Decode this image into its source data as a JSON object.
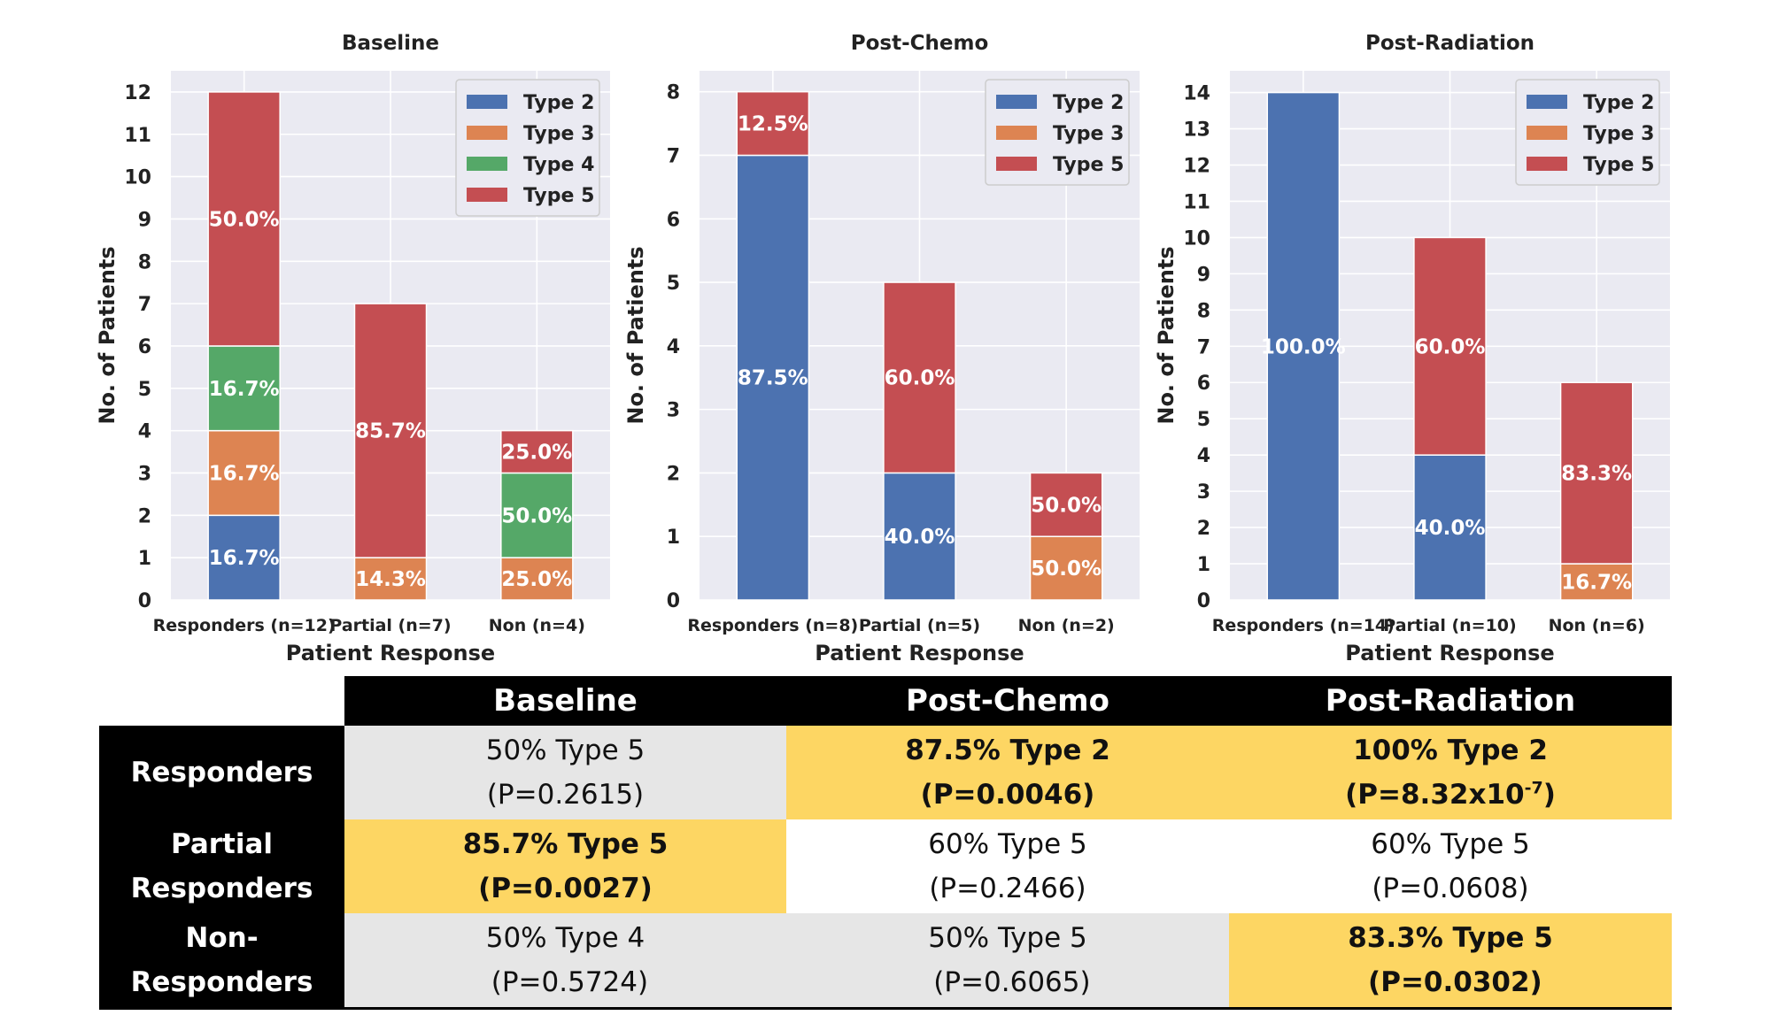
{
  "chart_data": [
    {
      "type": "bar",
      "stacked": true,
      "title": "Baseline",
      "xlabel": "Patient Response",
      "ylabel": "No. of Patients",
      "categories": [
        "Responders (n=12)",
        "Partial (n=7)",
        "Non (n=4)"
      ],
      "yticks": [
        0,
        1,
        2,
        3,
        4,
        5,
        6,
        7,
        8,
        9,
        10,
        11,
        12
      ],
      "ylim": [
        0,
        12.5
      ],
      "grid": true,
      "legend": "top-right",
      "series": [
        {
          "name": "Type 2",
          "color": "#4c72b0",
          "values": [
            2,
            0,
            0
          ],
          "labels": [
            "16.7%",
            "",
            ""
          ]
        },
        {
          "name": "Type 3",
          "color": "#dd8452",
          "values": [
            2,
            1,
            1
          ],
          "labels": [
            "16.7%",
            "14.3%",
            "25.0%"
          ]
        },
        {
          "name": "Type 4",
          "color": "#55a868",
          "values": [
            2,
            0,
            2
          ],
          "labels": [
            "16.7%",
            "",
            "50.0%"
          ]
        },
        {
          "name": "Type 5",
          "color": "#c44e52",
          "values": [
            6,
            6,
            1
          ],
          "labels": [
            "50.0%",
            "85.7%",
            "25.0%"
          ]
        }
      ]
    },
    {
      "type": "bar",
      "stacked": true,
      "title": "Post-Chemo",
      "xlabel": "Patient Response",
      "ylabel": "No. of Patients",
      "categories": [
        "Responders (n=8)",
        "Partial (n=5)",
        "Non (n=2)"
      ],
      "yticks": [
        0,
        1,
        2,
        3,
        4,
        5,
        6,
        7,
        8
      ],
      "ylim": [
        0,
        8.33
      ],
      "grid": true,
      "legend": "top-right",
      "series": [
        {
          "name": "Type 2",
          "color": "#4c72b0",
          "values": [
            7,
            2,
            0
          ],
          "labels": [
            "87.5%",
            "40.0%",
            ""
          ]
        },
        {
          "name": "Type 3",
          "color": "#dd8452",
          "values": [
            0,
            0,
            1
          ],
          "labels": [
            "",
            "",
            "50.0%"
          ]
        },
        {
          "name": "Type 5",
          "color": "#c44e52",
          "values": [
            1,
            3,
            1
          ],
          "labels": [
            "12.5%",
            "60.0%",
            "50.0%"
          ]
        }
      ]
    },
    {
      "type": "bar",
      "stacked": true,
      "title": "Post-Radiation",
      "xlabel": "Patient Response",
      "ylabel": "No. of Patients",
      "categories": [
        "Responders (n=14)",
        "Partial (n=10)",
        "Non (n=6)"
      ],
      "yticks": [
        0,
        1,
        2,
        3,
        4,
        5,
        6,
        7,
        8,
        9,
        10,
        11,
        12,
        13,
        14
      ],
      "ylim": [
        0,
        14.6
      ],
      "grid": true,
      "legend": "top-right",
      "series": [
        {
          "name": "Type 2",
          "color": "#4c72b0",
          "values": [
            14,
            4,
            0
          ],
          "labels": [
            "100.0%",
            "40.0%",
            ""
          ]
        },
        {
          "name": "Type 3",
          "color": "#dd8452",
          "values": [
            0,
            0,
            1
          ],
          "labels": [
            "",
            "",
            "16.7%"
          ]
        },
        {
          "name": "Type 5",
          "color": "#c44e52",
          "values": [
            0,
            6,
            5
          ],
          "labels": [
            "",
            "60.0%",
            "83.3%"
          ]
        }
      ]
    }
  ],
  "table": {
    "columns": [
      "Baseline",
      "Post-Chemo",
      "Post-Radiation"
    ],
    "rows": [
      {
        "label_l1": "Responders",
        "label_l2": "",
        "cells": [
          {
            "l1": "50% Type 5",
            "l2": "(P=0.2615)",
            "highlight": false
          },
          {
            "l1": "87.5% Type 2",
            "l2": "(P=0.0046)",
            "highlight": true
          },
          {
            "l1": "100% Type 2",
            "l2": "(P=8.32x10",
            "sup": "-7",
            "l2_end": ")",
            "highlight": true
          }
        ]
      },
      {
        "label_l1": "Partial",
        "label_l2": "Responders",
        "cells": [
          {
            "l1": "85.7% Type 5",
            "l2": "(P=0.0027)",
            "highlight": true
          },
          {
            "l1": "60% Type 5",
            "l2": "(P=0.2466)",
            "highlight": false
          },
          {
            "l1": "60% Type 5",
            "l2": "(P=0.0608)",
            "highlight": false
          }
        ]
      },
      {
        "label_l1": "Non-",
        "label_l2": "Responders",
        "cells": [
          {
            "l1": "50% Type 4",
            "l2": " (P=0.5724)",
            "highlight": false
          },
          {
            "l1": "50% Type 5",
            "l2": " (P=0.6065)",
            "highlight": false
          },
          {
            "l1": "83.3% Type 5",
            "l2": " (P=0.0302)",
            "highlight": true
          }
        ]
      }
    ]
  }
}
